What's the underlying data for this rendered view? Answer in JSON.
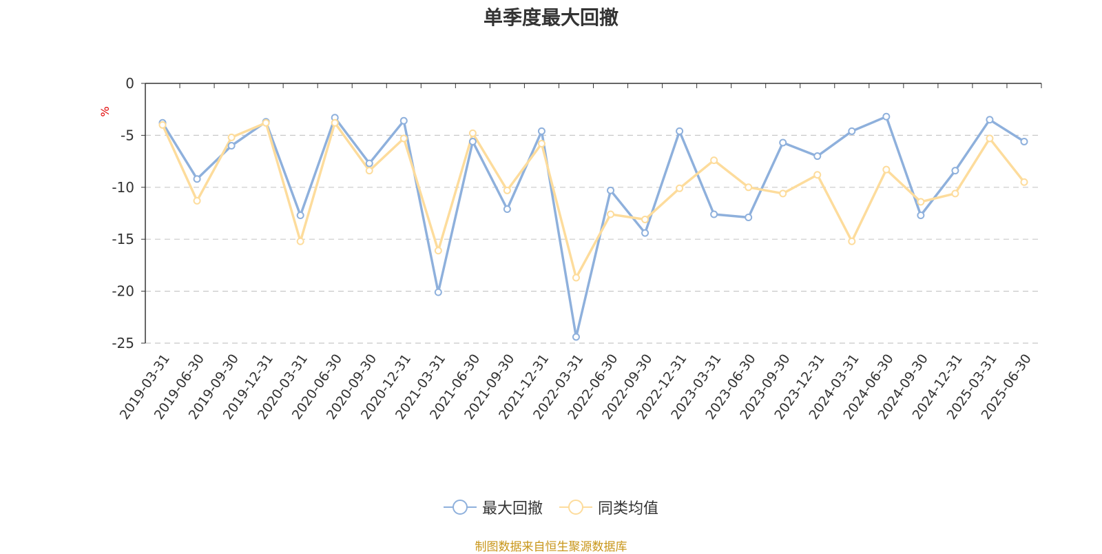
{
  "title": "单季度最大回撤",
  "source_note": "制图数据来自恒生聚源数据库",
  "colors": {
    "series_1": "#8eb0dc",
    "series_2": "#fddc9c",
    "grid": "#c8c8c8",
    "axis": "#333333",
    "unit": "#e00000",
    "source": "#c8961a"
  },
  "chart_data": {
    "type": "line",
    "title": "单季度最大回撤",
    "ylabel": "%",
    "xlabel": "",
    "ylim": [
      -25,
      0
    ],
    "yticks": [
      0,
      -5,
      -10,
      -15,
      -20,
      -25
    ],
    "grid": true,
    "legend_position": "bottom",
    "x": [
      "2019-03-31",
      "2019-06-30",
      "2019-09-30",
      "2019-12-31",
      "2020-03-31",
      "2020-06-30",
      "2020-09-30",
      "2020-12-31",
      "2021-03-31",
      "2021-06-30",
      "2021-09-30",
      "2021-12-31",
      "2022-03-31",
      "2022-06-30",
      "2022-09-30",
      "2022-12-31",
      "2023-03-31",
      "2023-06-30",
      "2023-09-30",
      "2023-12-31",
      "2024-03-31",
      "2024-06-30",
      "2024-09-30",
      "2024-12-31",
      "2025-03-31",
      "2025-06-30"
    ],
    "series": [
      {
        "name": "最大回撤",
        "color": "#8eb0dc",
        "values": [
          -3.8,
          -9.2,
          -6.0,
          -3.7,
          -12.7,
          -3.3,
          -7.7,
          -3.6,
          -20.1,
          -5.6,
          -12.1,
          -4.6,
          -24.4,
          -10.3,
          -14.4,
          -4.6,
          -12.6,
          -12.9,
          -5.7,
          -7.0,
          -4.6,
          -3.2,
          -12.7,
          -8.4,
          -3.5,
          -5.6
        ]
      },
      {
        "name": "同类均值",
        "color": "#fddc9c",
        "values": [
          -4.0,
          -11.3,
          -5.2,
          -3.8,
          -15.2,
          -3.8,
          -8.4,
          -5.3,
          -16.1,
          -4.8,
          -10.3,
          -5.8,
          -18.7,
          -12.6,
          -13.1,
          -10.1,
          -7.4,
          -10.0,
          -10.6,
          -8.8,
          -15.2,
          -8.3,
          -11.4,
          -10.6,
          -5.3,
          -9.5
        ]
      }
    ]
  }
}
